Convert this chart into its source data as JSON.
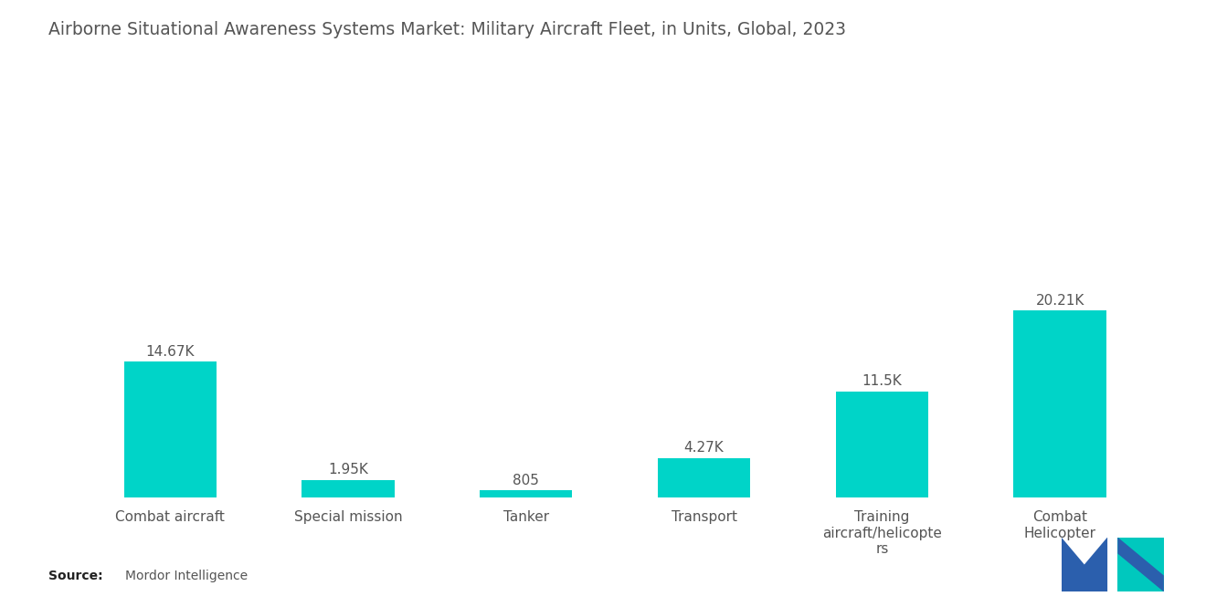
{
  "title": "Airborne Situational Awareness Systems Market: Military Aircraft Fleet, in Units, Global, 2023",
  "categories": [
    "Combat aircraft",
    "Special mission",
    "Tanker",
    "Transport",
    "Training\naircraft/helicopte\nrs",
    "Combat\nHelicopter"
  ],
  "values": [
    14670,
    1950,
    805,
    4270,
    11500,
    20210
  ],
  "labels": [
    "14.67K",
    "1.95K",
    "805",
    "4.27K",
    "11.5K",
    "20.21K"
  ],
  "bar_color": "#00D4C8",
  "background_color": "#ffffff",
  "title_fontsize": 13.5,
  "label_fontsize": 11,
  "tick_fontsize": 11,
  "source_bold": "Source:",
  "source_normal": "Mordor Intelligence",
  "ylim": [
    0,
    38000
  ],
  "bar_width": 0.52,
  "logo_blue": "#2B5FAD",
  "logo_teal": "#00C8BE"
}
